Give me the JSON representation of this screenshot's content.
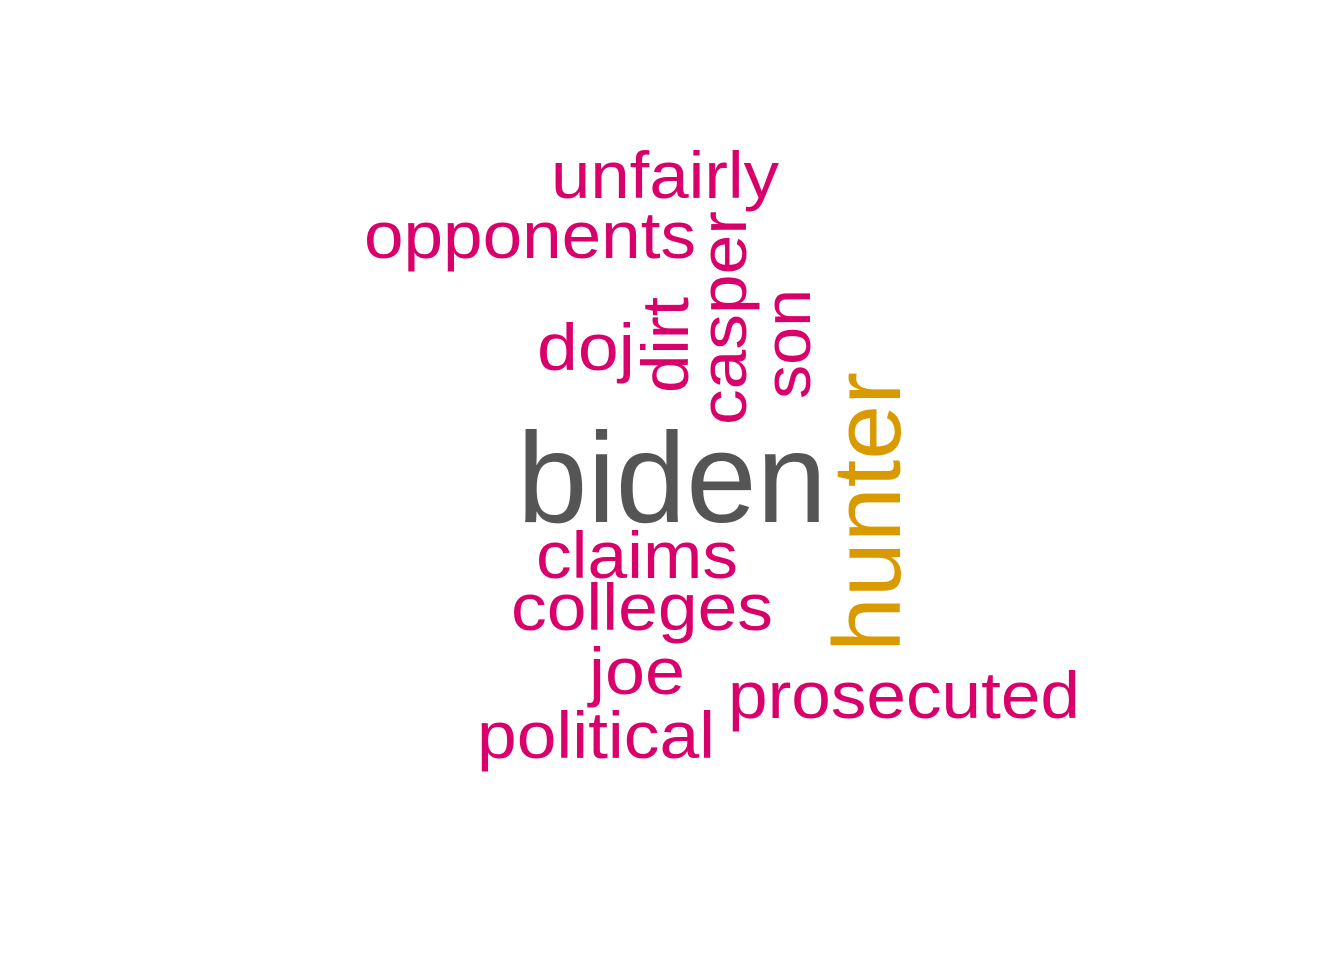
{
  "word_cloud": {
    "colors": {
      "primary": "#555555",
      "secondary": "#D99A00",
      "tertiary": "#D9006C",
      "background": "#FFFFFF"
    },
    "words": [
      {
        "id": "biden",
        "text": "biden",
        "rank": 1,
        "color_key": "primary",
        "orientation": "horizontal"
      },
      {
        "id": "hunter",
        "text": "hunter",
        "rank": 2,
        "color_key": "secondary",
        "orientation": "vertical"
      },
      {
        "id": "unfairly",
        "text": "unfairly",
        "rank": 3,
        "color_key": "tertiary",
        "orientation": "horizontal"
      },
      {
        "id": "opponents",
        "text": "opponents",
        "rank": 3,
        "color_key": "tertiary",
        "orientation": "horizontal"
      },
      {
        "id": "doj",
        "text": "doj",
        "rank": 3,
        "color_key": "tertiary",
        "orientation": "horizontal"
      },
      {
        "id": "dirt",
        "text": "dirt",
        "rank": 3,
        "color_key": "tertiary",
        "orientation": "vertical"
      },
      {
        "id": "casper",
        "text": "casper",
        "rank": 3,
        "color_key": "tertiary",
        "orientation": "vertical"
      },
      {
        "id": "son",
        "text": "son",
        "rank": 3,
        "color_key": "tertiary",
        "orientation": "vertical"
      },
      {
        "id": "claims",
        "text": "claims",
        "rank": 3,
        "color_key": "tertiary",
        "orientation": "horizontal"
      },
      {
        "id": "colleges",
        "text": "colleges",
        "rank": 3,
        "color_key": "tertiary",
        "orientation": "horizontal"
      },
      {
        "id": "joe",
        "text": "joe",
        "rank": 3,
        "color_key": "tertiary",
        "orientation": "horizontal"
      },
      {
        "id": "prosecuted",
        "text": "prosecuted",
        "rank": 3,
        "color_key": "tertiary",
        "orientation": "horizontal"
      },
      {
        "id": "political",
        "text": "political",
        "rank": 3,
        "color_key": "tertiary",
        "orientation": "horizontal"
      }
    ]
  }
}
